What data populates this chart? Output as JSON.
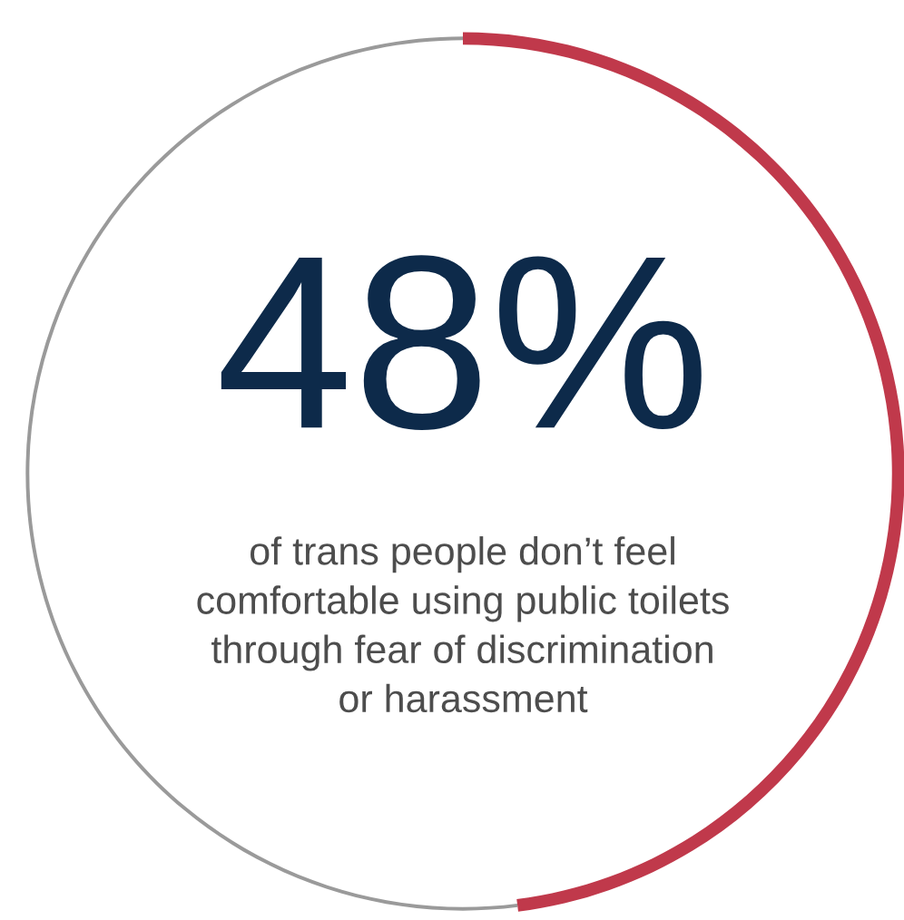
{
  "chart_data": {
    "type": "donut",
    "categories": [
      null,
      null
    ],
    "values": [
      48,
      52
    ],
    "colors": [
      "#c0394b",
      "#9a9a9a"
    ],
    "value_labels": [
      "48%",
      null
    ],
    "annotations": [
      "of trans people don’t feel\ncomfortable using public toilets\nthrough fear of discrimination\nor harassment"
    ],
    "legend": false
  }
}
